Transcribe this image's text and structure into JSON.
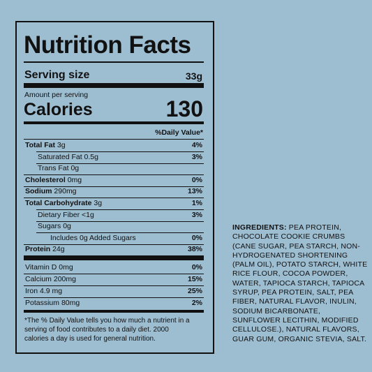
{
  "label": {
    "title": "Nutrition Facts",
    "serving_size_label": "Serving size",
    "serving_size": "33g",
    "amount_per_serving": "Amount per serving",
    "calories_label": "Calories",
    "calories": "130",
    "daily_value_header": "%Daily Value*",
    "rows": [
      {
        "name": "Total Fat",
        "amount": "3g",
        "dv": "4%"
      },
      {
        "name": "Saturated Fat",
        "amount": "0.5g",
        "dv": "3%"
      },
      {
        "name": "Trans Fat",
        "amount": "0g"
      },
      {
        "name": "Cholesterol",
        "amount": "0mg",
        "dv": "0%"
      },
      {
        "name": "Sodium",
        "amount": "290mg",
        "dv": "13%"
      },
      {
        "name": "Total Carbohydrate",
        "amount": "3g",
        "dv": "1%"
      },
      {
        "name": "Dietary Fiber",
        "amount": "<1g",
        "dv": "3%"
      },
      {
        "name": "Sugars",
        "amount": "0g"
      },
      {
        "name": "Includes 0g Added Sugars",
        "dv": "0%"
      },
      {
        "name": "Protein",
        "amount": "24g",
        "dv": "38%"
      }
    ],
    "vitamins": [
      {
        "name": "Vitamin D",
        "amount": "0mg",
        "dv": "0%"
      },
      {
        "name": "Calcium",
        "amount": "200mg",
        "dv": "15%"
      },
      {
        "name": "Iron",
        "amount": "4.9 mg",
        "dv": "25%"
      },
      {
        "name": "Potassium",
        "amount": "80mg",
        "dv": "2%"
      }
    ],
    "footnote": [
      "*The % Daily Value tells you how much a nutrient in a",
      "serving of food contributes to a daily diet. 2000",
      "calories a day is used for general nutrition."
    ]
  },
  "ingredients": {
    "heading": "INGREDIENTS:",
    "lines": [
      "PEA PROTEIN,",
      "CHOCOLATE COOKIE CRUMBS",
      "(CANE SUGAR, PEA STARCH, NON-",
      "HYDROGENATED SHORTENING",
      "(PALM OIL), POTATO STARCH, WHITE",
      "RICE FLOUR, COCOA POWDER,",
      "WATER, TAPIOCA STARCH, TAPIOCA",
      "SYRUP, PEA PROTEIN, SALT, PEA",
      "FIBER, NATURAL FLAVOR, INULIN,",
      "SODIUM BICARBONATE,",
      "SUNFLOWER LECITHIN, MODIFIED",
      "CELLULOSE.), NATURAL FLAVORS,",
      "GUAR GUM, ORGANIC STEVIA, SALT."
    ]
  }
}
